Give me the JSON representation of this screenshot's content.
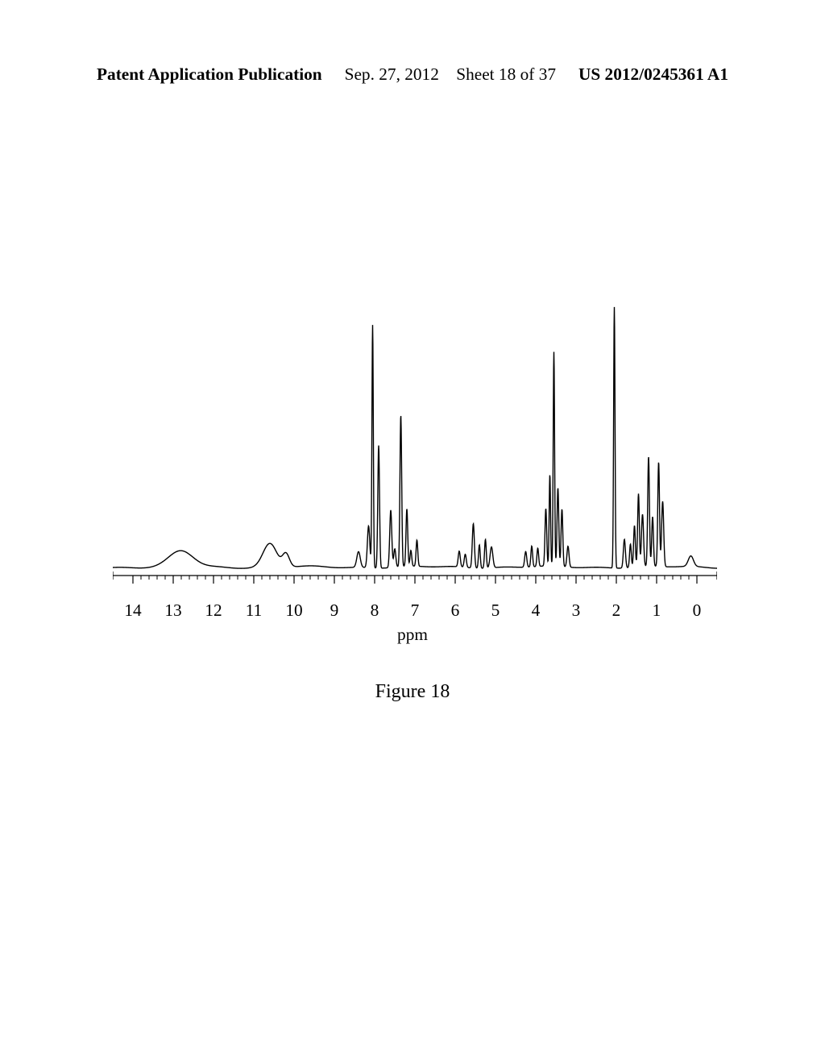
{
  "header": {
    "left_bold": "Patent Application Publication",
    "date": "Sep. 27, 2012",
    "sheet": "Sheet 18 of 37",
    "pubnum": "US 2012/0245361 A1",
    "font_size_pt": 16,
    "left_weight": "bold",
    "right_weight": "bold"
  },
  "figure": {
    "caption": "Figure 18",
    "caption_font_size_pt": 18
  },
  "nmr": {
    "type": "line",
    "xlabel": "ppm",
    "label_font_size_pt": 16,
    "tick_font_size_pt": 16,
    "xlim": [
      14.5,
      -0.5
    ],
    "ylim": [
      0,
      1.05
    ],
    "ticks": [
      14,
      13,
      12,
      11,
      10,
      9,
      8,
      7,
      6,
      5,
      4,
      3,
      2,
      1,
      0
    ],
    "minor_ticks_per_major": 5,
    "line_color": "#000000",
    "line_width": 1.4,
    "background_color": "#ffffff",
    "baseline_y": 0.02,
    "peaks": [
      {
        "ppm": 12.8,
        "h": 0.06,
        "w": 0.7
      },
      {
        "ppm": 10.6,
        "h": 0.09,
        "w": 0.4
      },
      {
        "ppm": 10.2,
        "h": 0.05,
        "w": 0.2
      },
      {
        "ppm": 8.4,
        "h": 0.06,
        "w": 0.1
      },
      {
        "ppm": 8.15,
        "h": 0.16,
        "w": 0.07
      },
      {
        "ppm": 8.05,
        "h": 0.93,
        "w": 0.04
      },
      {
        "ppm": 7.9,
        "h": 0.47,
        "w": 0.05
      },
      {
        "ppm": 7.6,
        "h": 0.22,
        "w": 0.06
      },
      {
        "ppm": 7.5,
        "h": 0.07,
        "w": 0.06
      },
      {
        "ppm": 7.35,
        "h": 0.58,
        "w": 0.05
      },
      {
        "ppm": 7.2,
        "h": 0.22,
        "w": 0.05
      },
      {
        "ppm": 7.1,
        "h": 0.06,
        "w": 0.05
      },
      {
        "ppm": 6.95,
        "h": 0.1,
        "w": 0.05
      },
      {
        "ppm": 5.9,
        "h": 0.06,
        "w": 0.06
      },
      {
        "ppm": 5.75,
        "h": 0.05,
        "w": 0.06
      },
      {
        "ppm": 5.55,
        "h": 0.17,
        "w": 0.06
      },
      {
        "ppm": 5.4,
        "h": 0.09,
        "w": 0.05
      },
      {
        "ppm": 5.25,
        "h": 0.11,
        "w": 0.05
      },
      {
        "ppm": 5.1,
        "h": 0.08,
        "w": 0.08
      },
      {
        "ppm": 4.25,
        "h": 0.06,
        "w": 0.06
      },
      {
        "ppm": 4.1,
        "h": 0.08,
        "w": 0.05
      },
      {
        "ppm": 3.95,
        "h": 0.07,
        "w": 0.05
      },
      {
        "ppm": 3.75,
        "h": 0.22,
        "w": 0.05
      },
      {
        "ppm": 3.65,
        "h": 0.35,
        "w": 0.04
      },
      {
        "ppm": 3.55,
        "h": 0.82,
        "w": 0.04
      },
      {
        "ppm": 3.45,
        "h": 0.3,
        "w": 0.05
      },
      {
        "ppm": 3.35,
        "h": 0.22,
        "w": 0.05
      },
      {
        "ppm": 3.2,
        "h": 0.08,
        "w": 0.06
      },
      {
        "ppm": 2.05,
        "h": 1.0,
        "w": 0.04
      },
      {
        "ppm": 1.8,
        "h": 0.11,
        "w": 0.06
      },
      {
        "ppm": 1.65,
        "h": 0.09,
        "w": 0.05
      },
      {
        "ppm": 1.55,
        "h": 0.16,
        "w": 0.05
      },
      {
        "ppm": 1.45,
        "h": 0.28,
        "w": 0.05
      },
      {
        "ppm": 1.35,
        "h": 0.2,
        "w": 0.06
      },
      {
        "ppm": 1.2,
        "h": 0.42,
        "w": 0.05
      },
      {
        "ppm": 1.1,
        "h": 0.19,
        "w": 0.05
      },
      {
        "ppm": 0.95,
        "h": 0.4,
        "w": 0.05
      },
      {
        "ppm": 0.85,
        "h": 0.25,
        "w": 0.06
      },
      {
        "ppm": 0.15,
        "h": 0.04,
        "w": 0.15
      }
    ]
  }
}
